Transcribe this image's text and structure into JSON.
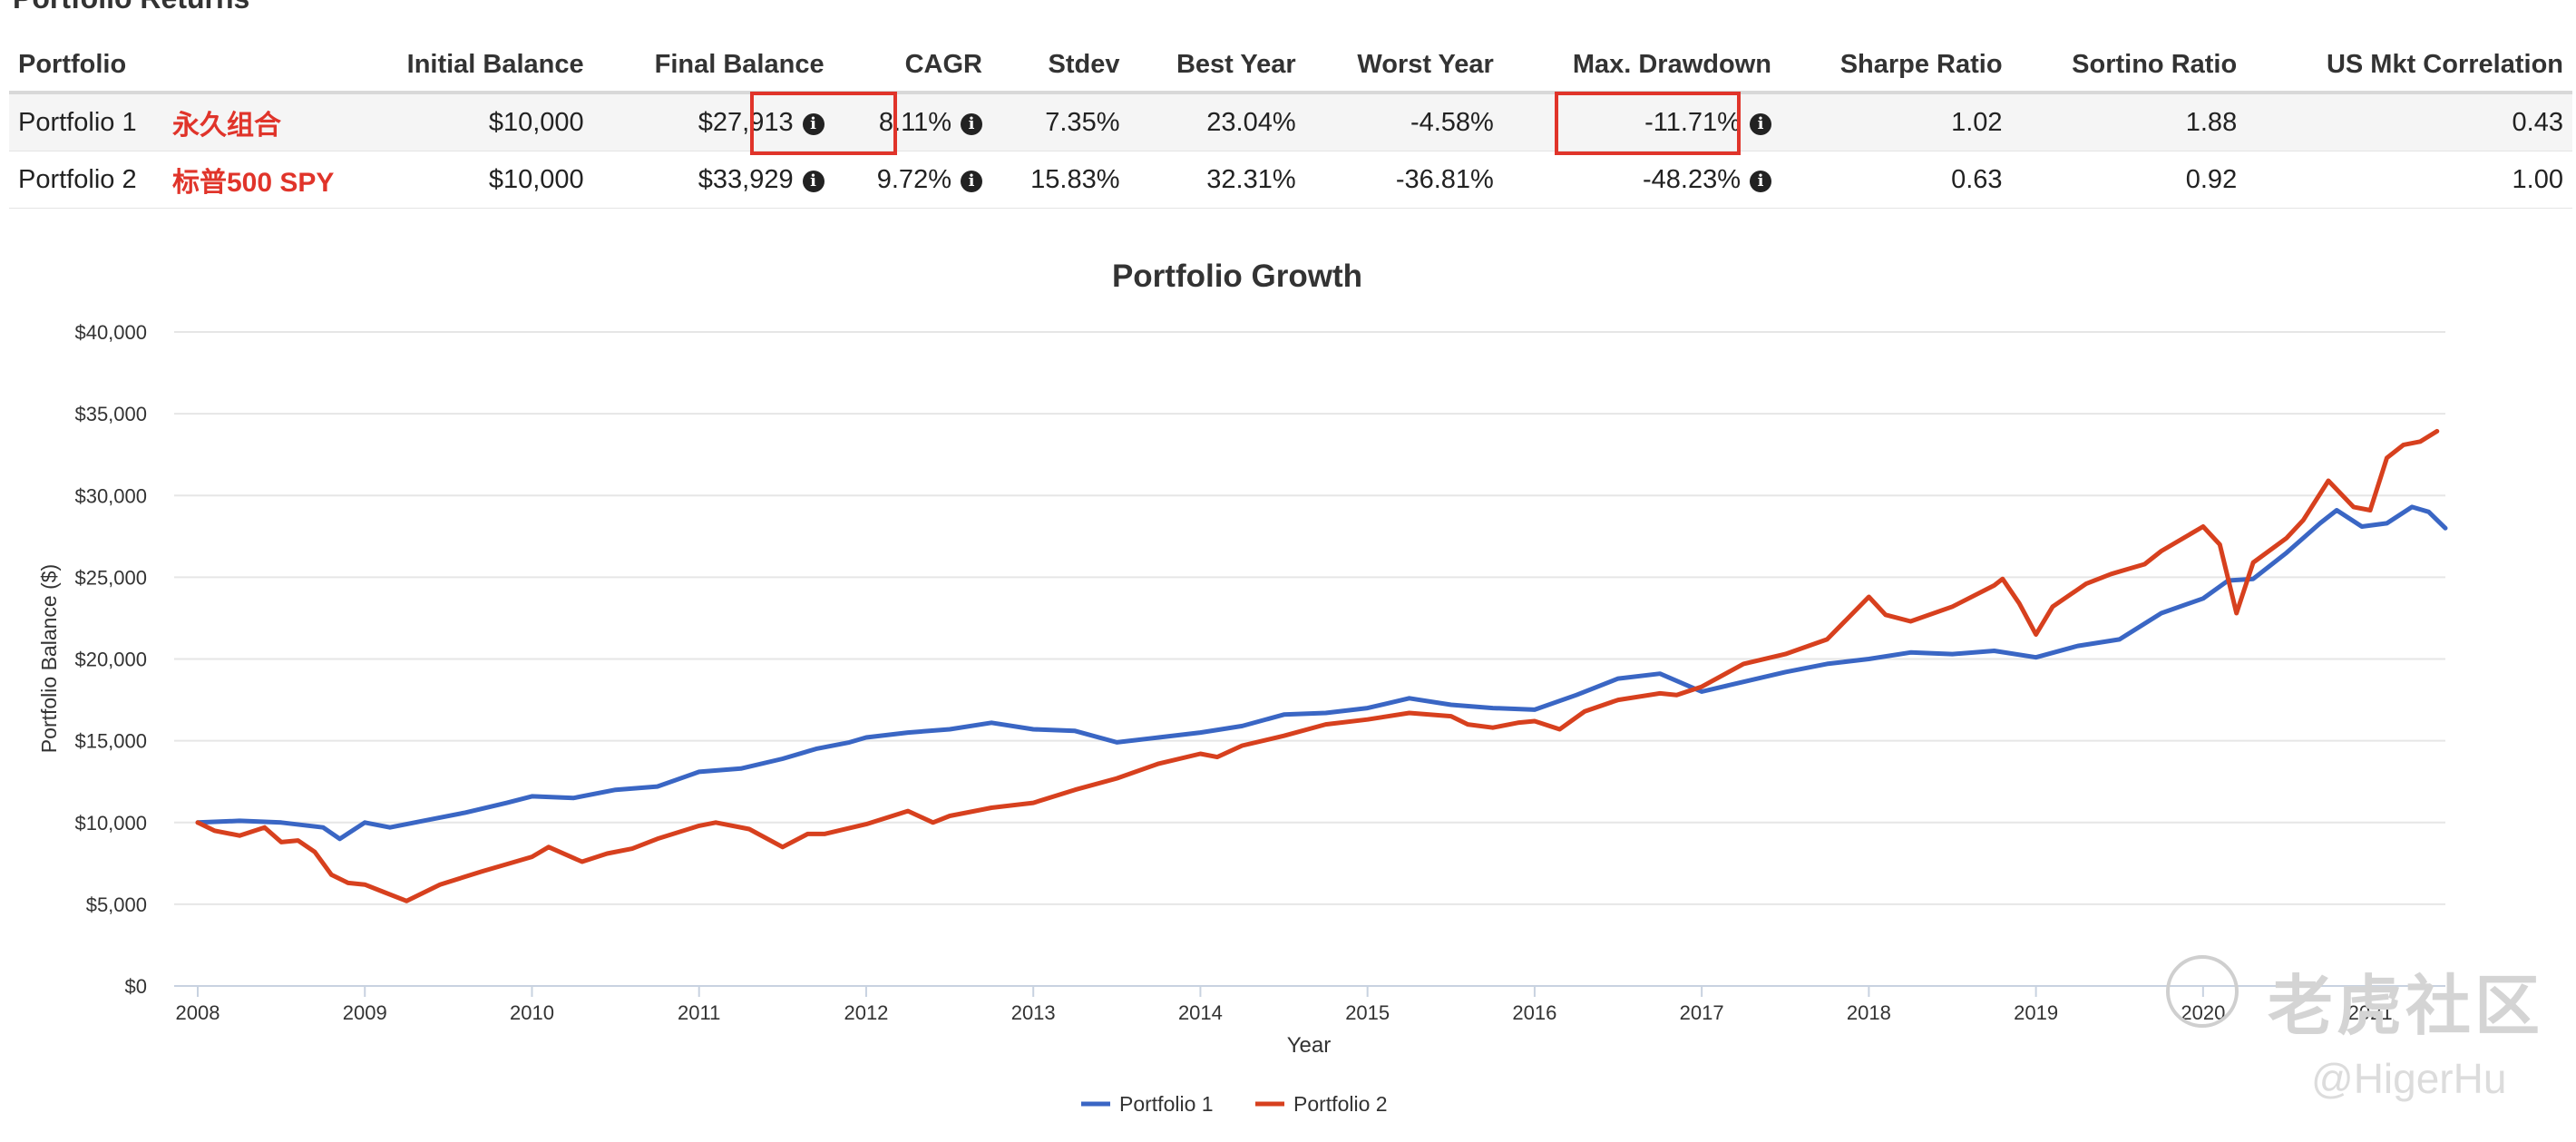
{
  "section_title": "Portfolio Returns",
  "table": {
    "headers": [
      "Portfolio",
      "Initial Balance",
      "Final Balance",
      "CAGR",
      "Stdev",
      "Best Year",
      "Worst Year",
      "Max. Drawdown",
      "Sharpe Ratio",
      "Sortino Ratio",
      "US Mkt Correlation"
    ],
    "rows": [
      {
        "name": "Portfolio 1",
        "note": "永久组合",
        "initial": "$10,000",
        "final": "$27,913",
        "cagr": "8.11%",
        "stdev": "7.35%",
        "best": "23.04%",
        "worst": "-4.58%",
        "maxdd": "-11.71%",
        "sharpe": "1.02",
        "sortino": "1.88",
        "corr": "0.43"
      },
      {
        "name": "Portfolio 2",
        "note": "标普500 SPY",
        "initial": "$10,000",
        "final": "$33,929",
        "cagr": "9.72%",
        "stdev": "15.83%",
        "best": "32.31%",
        "worst": "-36.81%",
        "maxdd": "-48.23%",
        "sharpe": "0.63",
        "sortino": "0.92",
        "corr": "1.00"
      }
    ],
    "info_icon": "info-circle-icon",
    "info_glyph": "i"
  },
  "watermark": {
    "text": "老虎社区",
    "handle": "@HigerHu",
    "logo": "tiger-logo-icon"
  },
  "colors": {
    "portfolio1": "#3a66c4",
    "portfolio2": "#d7401e",
    "highlight": "#e0342a",
    "note": "#e0342a"
  },
  "chart_data": {
    "type": "line",
    "title": "Portfolio Growth",
    "xlabel": "Year",
    "ylabel": "Portfolio Balance ($)",
    "ylim": [
      0,
      40000
    ],
    "yticks": [
      0,
      5000,
      10000,
      15000,
      20000,
      25000,
      30000,
      35000,
      40000
    ],
    "ytick_labels": [
      "$0",
      "$5,000",
      "$10,000",
      "$15,000",
      "$20,000",
      "$25,000",
      "$30,000",
      "$35,000",
      "$40,000"
    ],
    "xticks": [
      2008,
      2009,
      2010,
      2011,
      2012,
      2013,
      2014,
      2015,
      2016,
      2017,
      2018,
      2019,
      2020,
      2021
    ],
    "xtick_labels": [
      "2008",
      "2009",
      "2010",
      "2011",
      "2012",
      "2013",
      "2014",
      "2015",
      "2016",
      "2017",
      "2018",
      "2019",
      "2020",
      "2021"
    ],
    "xlim": [
      2008.0,
      2021.45
    ],
    "grid": "horizontal",
    "legend_position": "bottom-center",
    "series": [
      {
        "name": "Portfolio 1",
        "x": [
          2008.0,
          2008.25,
          2008.5,
          2008.75,
          2008.85,
          2009.0,
          2009.15,
          2009.35,
          2009.6,
          2009.85,
          2010.0,
          2010.25,
          2010.5,
          2010.75,
          2011.0,
          2011.25,
          2011.5,
          2011.7,
          2011.9,
          2012.0,
          2012.25,
          2012.5,
          2012.75,
          2013.0,
          2013.25,
          2013.5,
          2013.75,
          2014.0,
          2014.25,
          2014.5,
          2014.75,
          2015.0,
          2015.25,
          2015.5,
          2015.75,
          2016.0,
          2016.25,
          2016.5,
          2016.75,
          2017.0,
          2017.25,
          2017.5,
          2017.75,
          2018.0,
          2018.25,
          2018.5,
          2018.75,
          2019.0,
          2019.25,
          2019.5,
          2019.75,
          2020.0,
          2020.15,
          2020.3,
          2020.5,
          2020.7,
          2020.8,
          2020.95,
          2021.1,
          2021.25,
          2021.35,
          2021.45
        ],
        "y": [
          10000,
          10100,
          10000,
          9700,
          9000,
          10000,
          9700,
          10100,
          10600,
          11200,
          11600,
          11500,
          12000,
          12200,
          13100,
          13300,
          13900,
          14500,
          14900,
          15200,
          15500,
          15700,
          16100,
          15700,
          15600,
          14900,
          15200,
          15500,
          15900,
          16600,
          16700,
          17000,
          17600,
          17200,
          17000,
          16900,
          17800,
          18800,
          19100,
          18000,
          18600,
          19200,
          19700,
          20000,
          20400,
          20300,
          20500,
          20100,
          20800,
          21200,
          22800,
          23700,
          24800,
          24900,
          26500,
          28300,
          29100,
          28100,
          28300,
          29300,
          29000,
          28000
        ]
      },
      {
        "name": "Portfolio 2",
        "x": [
          2008.0,
          2008.1,
          2008.25,
          2008.4,
          2008.5,
          2008.6,
          2008.7,
          2008.8,
          2008.9,
          2009.0,
          2009.1,
          2009.25,
          2009.45,
          2009.7,
          2009.9,
          2010.0,
          2010.1,
          2010.3,
          2010.45,
          2010.6,
          2010.75,
          2011.0,
          2011.1,
          2011.3,
          2011.5,
          2011.65,
          2011.75,
          2012.0,
          2012.25,
          2012.4,
          2012.5,
          2012.75,
          2013.0,
          2013.25,
          2013.5,
          2013.75,
          2014.0,
          2014.1,
          2014.25,
          2014.5,
          2014.75,
          2015.0,
          2015.25,
          2015.5,
          2015.6,
          2015.75,
          2015.9,
          2016.0,
          2016.15,
          2016.3,
          2016.5,
          2016.75,
          2016.85,
          2017.0,
          2017.25,
          2017.5,
          2017.75,
          2018.0,
          2018.1,
          2018.25,
          2018.5,
          2018.75,
          2018.8,
          2018.9,
          2019.0,
          2019.1,
          2019.3,
          2019.45,
          2019.55,
          2019.65,
          2019.75,
          2020.0,
          2020.1,
          2020.2,
          2020.3,
          2020.5,
          2020.6,
          2020.75,
          2020.9,
          2021.0,
          2021.1,
          2021.2,
          2021.3,
          2021.4
        ],
        "y": [
          10000,
          9500,
          9200,
          9700,
          8800,
          8900,
          8200,
          6800,
          6300,
          6200,
          5800,
          5200,
          6200,
          7000,
          7600,
          7900,
          8500,
          7600,
          8100,
          8400,
          9000,
          9800,
          10000,
          9600,
          8500,
          9300,
          9300,
          9900,
          10700,
          10000,
          10400,
          10900,
          11200,
          12000,
          12700,
          13600,
          14200,
          14000,
          14700,
          15300,
          16000,
          16300,
          16700,
          16500,
          16000,
          15800,
          16100,
          16200,
          15700,
          16800,
          17500,
          17900,
          17800,
          18300,
          19700,
          20300,
          21200,
          23800,
          22700,
          22300,
          23200,
          24500,
          24900,
          23400,
          21500,
          23200,
          24600,
          25200,
          25500,
          25800,
          26600,
          28100,
          27000,
          22800,
          25900,
          27400,
          28500,
          30900,
          29300,
          29100,
          32300,
          33100,
          33300,
          33929
        ]
      }
    ]
  }
}
